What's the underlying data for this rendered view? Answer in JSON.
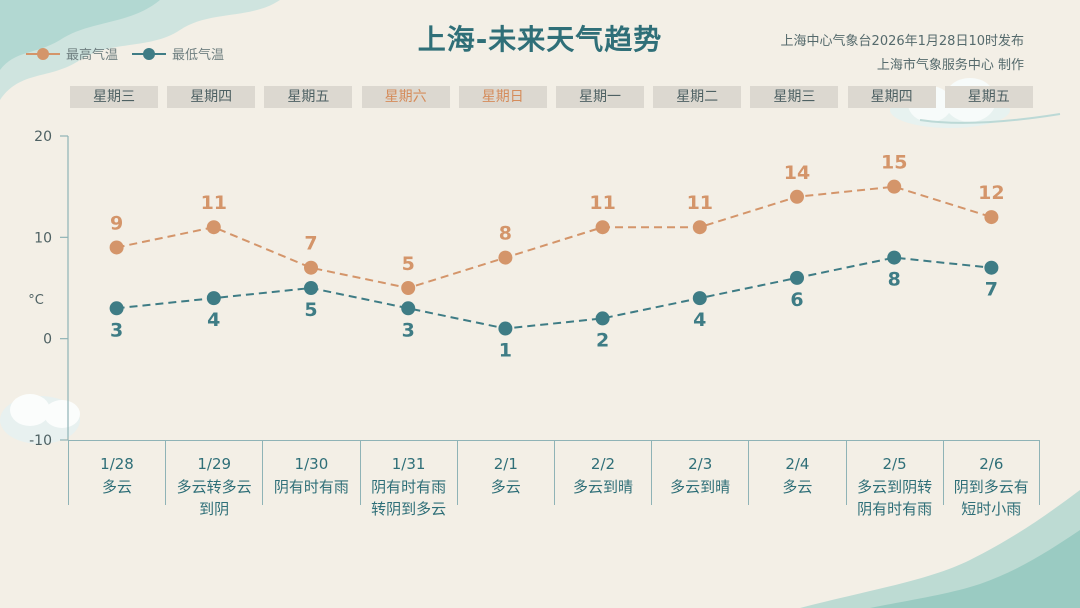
{
  "header": {
    "title": "上海-未来天气趋势",
    "issuer_line1": "上海中心气象台2026年1月28日10时发布",
    "issuer_line2": "上海市气象服务中心  制作"
  },
  "colors": {
    "high": "#d4956a",
    "low": "#3e7c85",
    "axis": "#8fb3b6",
    "title": "#2f6f78"
  },
  "chart_data": {
    "type": "line",
    "unit_label": "°C",
    "ylim": [
      -10,
      20
    ],
    "yticks": [
      -10,
      0,
      10,
      20
    ],
    "weekdays": [
      "星期三",
      "星期四",
      "星期五",
      "星期六",
      "星期日",
      "星期一",
      "星期二",
      "星期三",
      "星期四",
      "星期五"
    ],
    "weekend_indices": [
      3,
      4
    ],
    "categories": [
      "1/28",
      "1/29",
      "1/30",
      "1/31",
      "2/1",
      "2/2",
      "2/3",
      "2/4",
      "2/5",
      "2/6"
    ],
    "weather": [
      "多云",
      "多云转多云\n到阴",
      "阴有时有雨",
      "阴有时有雨\n转阴到多云",
      "多云",
      "多云到晴",
      "多云到晴",
      "多云",
      "多云到阴转\n阴有时有雨",
      "阴到多云有\n短时小雨"
    ],
    "series": [
      {
        "name": "最高气温",
        "values": [
          9,
          11,
          7,
          5,
          8,
          11,
          11,
          14,
          15,
          12
        ]
      },
      {
        "name": "最低气温",
        "values": [
          3,
          4,
          5,
          3,
          1,
          2,
          4,
          6,
          8,
          7
        ]
      }
    ]
  }
}
